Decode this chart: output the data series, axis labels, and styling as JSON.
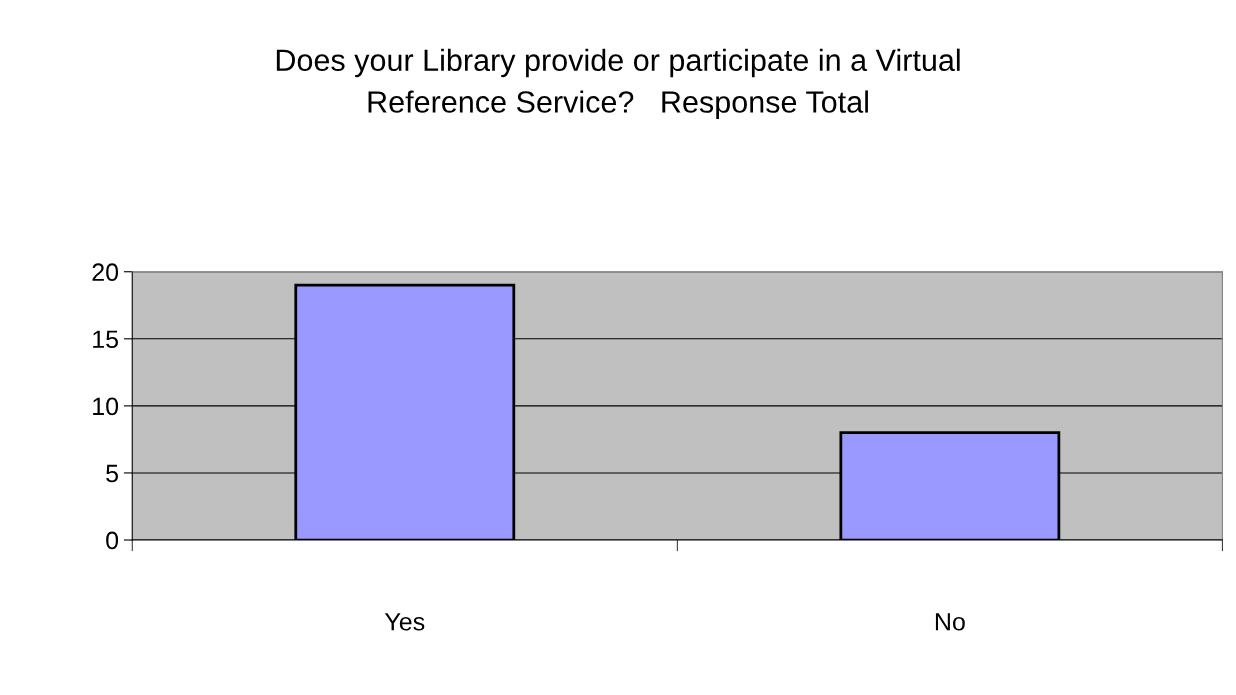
{
  "chart_data": {
    "type": "bar",
    "title": "Does your Library provide or participate in a Virtual\nReference Service?   Response Total",
    "categories": [
      "Yes",
      "No"
    ],
    "values": [
      19,
      8
    ],
    "color": "#9999ff",
    "ylim": [
      0,
      20
    ],
    "yticks": [
      0,
      5,
      10,
      15,
      20
    ],
    "grid": "y",
    "legend": false
  }
}
